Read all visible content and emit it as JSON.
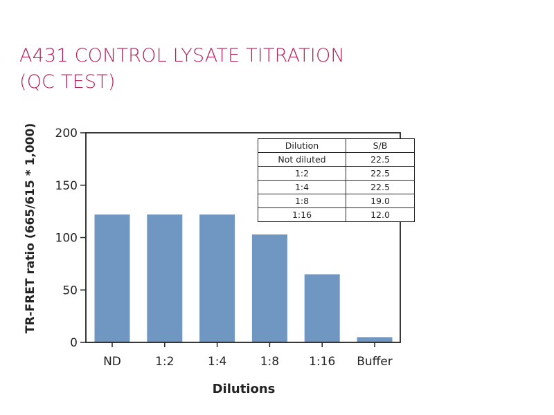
{
  "title_lines": [
    "A431 CONTROL LYSATE TITRATION",
    "(QC TEST)"
  ],
  "chart_data": {
    "type": "bar",
    "categories": [
      "ND",
      "1:2",
      "1:4",
      "1:8",
      "1:16",
      "Buffer"
    ],
    "values": [
      122,
      122,
      122,
      103,
      65,
      5
    ],
    "xlabel": "Dilutions",
    "ylabel": "TR-FRET ratio (665/615 * 1,000)",
    "ylim": [
      0,
      200
    ],
    "yticks": [
      0,
      50,
      100,
      150,
      200
    ],
    "bar_color": "#7097c2",
    "title_color": "#b5235a",
    "grid": false
  },
  "table": {
    "headers": [
      "Dilution",
      "S/B"
    ],
    "rows": [
      [
        "Not diluted",
        "22.5"
      ],
      [
        "1:2",
        "22.5"
      ],
      [
        "1:4",
        "22.5"
      ],
      [
        "1:8",
        "19.0"
      ],
      [
        "1:16",
        "12.0"
      ]
    ]
  }
}
